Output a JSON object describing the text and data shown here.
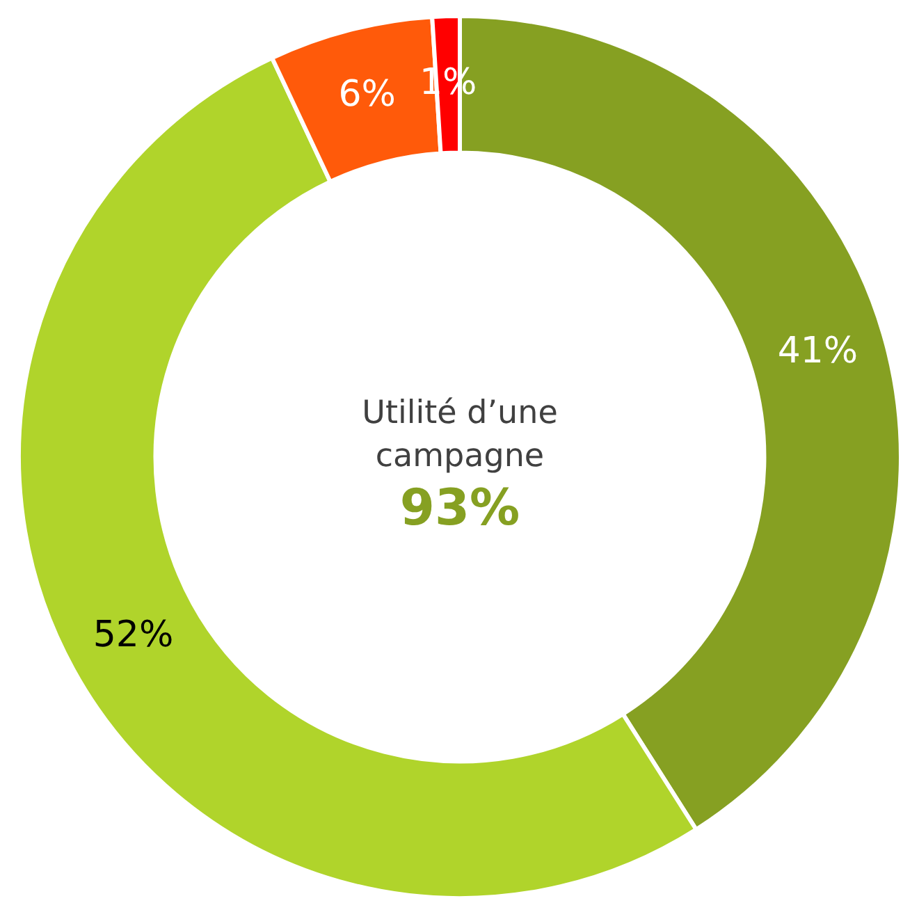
{
  "chart_data": {
    "type": "donut",
    "title": "Utilité d’une campagne",
    "annotations": [
      "93%"
    ],
    "categories": [
      null,
      null,
      null,
      null
    ],
    "values": [
      41,
      52,
      6,
      1
    ],
    "colors": [
      "#86a022",
      "#b0d42b",
      "#ff5a0a",
      "#ff0000"
    ],
    "value_labels": [
      "41%",
      "52%",
      "6%",
      "1%"
    ],
    "legend": false
  }
}
